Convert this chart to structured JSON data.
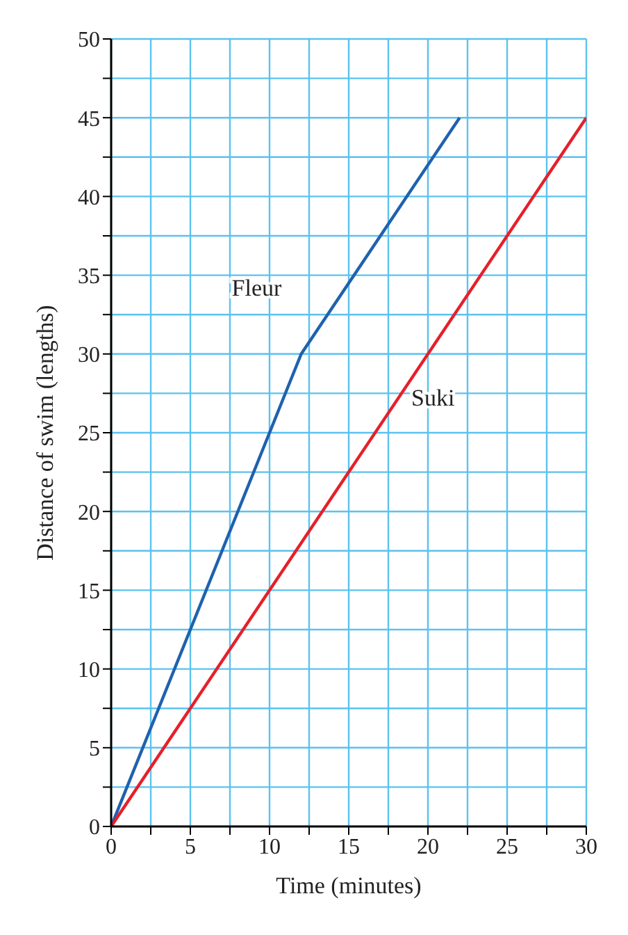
{
  "chart_data": {
    "type": "line",
    "xlabel": "Time (minutes)",
    "ylabel": "Distance of swim (lengths)",
    "xlim": [
      0,
      30
    ],
    "ylim": [
      0,
      50
    ],
    "xticks": [
      0,
      {
        "value": 2.5,
        "label": null
      },
      5,
      {
        "value": 7.5,
        "label": null
      },
      10,
      {
        "value": 12.5,
        "label": null
      },
      15,
      {
        "value": 17.5,
        "label": null
      },
      20,
      {
        "value": 22.5,
        "label": null
      },
      25,
      {
        "value": 27.5,
        "label": null
      },
      30
    ],
    "yticks": [
      0,
      {
        "value": 2.5,
        "label": null
      },
      5,
      {
        "value": 7.5,
        "label": null
      },
      10,
      {
        "value": 12.5,
        "label": null
      },
      15,
      {
        "value": 17.5,
        "label": null
      },
      20,
      {
        "value": 22.5,
        "label": null
      },
      25,
      {
        "value": 27.5,
        "label": null
      },
      30,
      {
        "value": 32.5,
        "label": null
      },
      35,
      {
        "value": 37.5,
        "label": null
      },
      40,
      {
        "value": 42.5,
        "label": null
      },
      45,
      {
        "value": 47.5,
        "label": null
      },
      50
    ],
    "grid": true,
    "marker": "none",
    "line_style": "solid",
    "series": [
      {
        "name": "Fleur",
        "color": "#1f62ad",
        "x": [
          0,
          12,
          22
        ],
        "values": [
          0,
          30,
          45
        ]
      },
      {
        "name": "Suki",
        "color": "#e5202a",
        "x": [
          0,
          15,
          30
        ],
        "values": [
          0,
          22.5,
          45
        ]
      }
    ]
  }
}
